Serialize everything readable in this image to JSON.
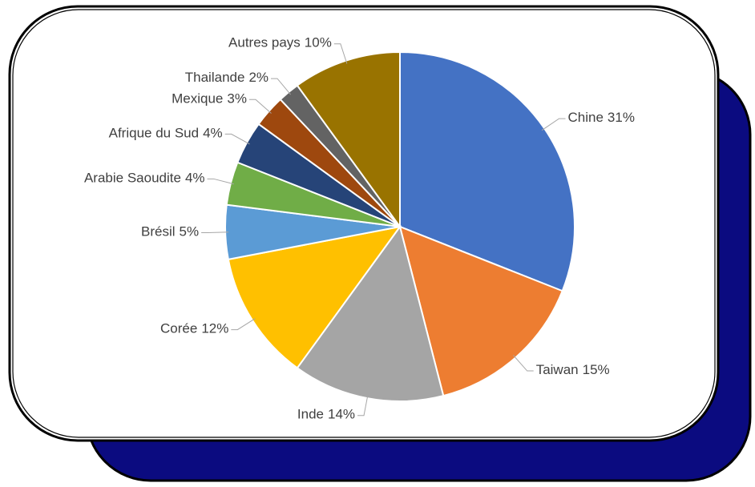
{
  "chart_data": {
    "type": "pie",
    "categories": [
      "Chine",
      "Taiwan",
      "Inde",
      "Corée",
      "Brésil",
      "Arabie Saoudite",
      "Afrique du Sud",
      "Mexique",
      "Thailande",
      "Autres pays"
    ],
    "values": [
      31,
      15,
      14,
      12,
      5,
      4,
      4,
      3,
      2,
      10
    ],
    "value_labels": [
      "31%",
      "15%",
      "14%",
      "12%",
      "5%",
      "4%",
      "4%",
      "3%",
      "2%",
      "10%"
    ],
    "colors": [
      "#4472c4",
      "#ed7d31",
      "#a5a5a5",
      "#ffc000",
      "#5b9bd5",
      "#70ad47",
      "#264478",
      "#9e480e",
      "#636363",
      "#997300"
    ]
  }
}
